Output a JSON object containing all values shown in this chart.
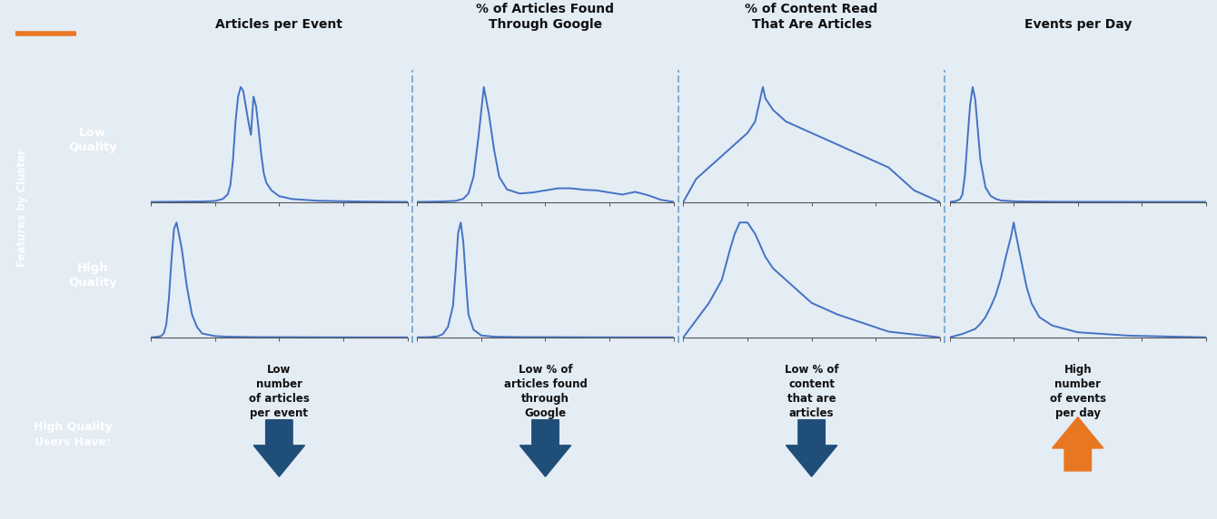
{
  "orange_line_color": "#E87722",
  "bg_color": "#E4ECF4",
  "curve_color": "#4472C4",
  "dashed_line_color": "#7EB0D5",
  "col_headers": [
    "Articles per Event",
    "% of Articles Found\nThrough Google",
    "% of Content Read\nThat Are Articles",
    "Events per Day"
  ],
  "row_headers": [
    "Low\nQuality",
    "High\nQuality"
  ],
  "bottom_label": "High Quality\nUsers Have:",
  "bottom_boxes_blue": [
    {
      "arrow": "down",
      "text": "Low\nnumber\nof articles\nper event"
    },
    {
      "arrow": "down",
      "text": "Low % of\narticles found\nthrough\nGoogle"
    },
    {
      "arrow": "down",
      "text": "Low % of\ncontent\nthat are\narticles"
    }
  ],
  "bottom_box_orange": {
    "arrow": "up",
    "text": "High\nnumber\nof events\nper day"
  },
  "blue_box_bg": "#D6E4F7",
  "blue_box_border": "#1F4E79",
  "orange_box_bg": "#FAE0B8",
  "orange_box_border": "#E87722",
  "arrow_blue": "#1F4E79",
  "arrow_orange": "#E87722",
  "label_dark_gray": "#6D6D6D",
  "label_light_gray": "#AAAAAA",
  "curves": {
    "low_quality": {
      "articles_per_event": {
        "x": [
          0,
          0.1,
          0.2,
          0.25,
          0.28,
          0.3,
          0.31,
          0.32,
          0.33,
          0.34,
          0.35,
          0.36,
          0.37,
          0.38,
          0.39,
          0.4,
          0.41,
          0.42,
          0.43,
          0.44,
          0.45,
          0.47,
          0.5,
          0.55,
          0.65,
          0.8,
          1.0
        ],
        "y": [
          0,
          0.001,
          0.002,
          0.005,
          0.015,
          0.04,
          0.09,
          0.22,
          0.42,
          0.55,
          0.6,
          0.58,
          0.5,
          0.42,
          0.35,
          0.55,
          0.5,
          0.38,
          0.25,
          0.15,
          0.1,
          0.06,
          0.03,
          0.015,
          0.006,
          0.002,
          0
        ]
      },
      "articles_found_google": {
        "x": [
          0,
          0.1,
          0.15,
          0.18,
          0.2,
          0.22,
          0.24,
          0.26,
          0.28,
          0.3,
          0.32,
          0.35,
          0.4,
          0.45,
          0.5,
          0.55,
          0.6,
          0.65,
          0.7,
          0.75,
          0.8,
          0.85,
          0.9,
          0.95,
          1.0
        ],
        "y": [
          0,
          0.002,
          0.005,
          0.015,
          0.04,
          0.12,
          0.32,
          0.55,
          0.42,
          0.25,
          0.12,
          0.06,
          0.04,
          0.045,
          0.055,
          0.065,
          0.065,
          0.058,
          0.055,
          0.045,
          0.035,
          0.048,
          0.032,
          0.01,
          0
        ]
      },
      "content_read_articles": {
        "x": [
          0,
          0.05,
          0.1,
          0.15,
          0.2,
          0.25,
          0.28,
          0.29,
          0.3,
          0.31,
          0.32,
          0.35,
          0.4,
          0.5,
          0.6,
          0.7,
          0.8,
          0.9,
          1.0
        ],
        "y": [
          0,
          0.002,
          0.003,
          0.004,
          0.005,
          0.006,
          0.007,
          0.008,
          0.009,
          0.01,
          0.009,
          0.008,
          0.007,
          0.006,
          0.005,
          0.004,
          0.003,
          0.001,
          0
        ]
      },
      "events_per_day": {
        "x": [
          0,
          0.02,
          0.04,
          0.05,
          0.06,
          0.07,
          0.08,
          0.09,
          0.1,
          0.11,
          0.12,
          0.14,
          0.16,
          0.18,
          0.2,
          0.25,
          0.3,
          0.4,
          0.6,
          0.8,
          1.0
        ],
        "y": [
          0,
          0.005,
          0.02,
          0.06,
          0.22,
          0.52,
          0.8,
          0.95,
          0.85,
          0.6,
          0.35,
          0.12,
          0.05,
          0.025,
          0.012,
          0.005,
          0.003,
          0.001,
          0.0005,
          0,
          0
        ]
      }
    },
    "high_quality": {
      "articles_per_event": {
        "x": [
          0,
          0.02,
          0.04,
          0.05,
          0.06,
          0.07,
          0.08,
          0.09,
          0.1,
          0.12,
          0.14,
          0.16,
          0.18,
          0.2,
          0.25,
          0.3,
          0.4,
          0.6,
          0.8,
          1.0
        ],
        "y": [
          0,
          0.003,
          0.01,
          0.03,
          0.1,
          0.3,
          0.6,
          0.85,
          0.9,
          0.7,
          0.4,
          0.18,
          0.08,
          0.03,
          0.01,
          0.005,
          0.002,
          0.001,
          0,
          0
        ]
      },
      "articles_found_google": {
        "x": [
          0,
          0.05,
          0.08,
          0.1,
          0.12,
          0.14,
          0.15,
          0.16,
          0.17,
          0.18,
          0.19,
          0.2,
          0.22,
          0.25,
          0.3,
          0.4,
          0.6,
          0.8,
          1.0
        ],
        "y": [
          0,
          0.002,
          0.008,
          0.025,
          0.08,
          0.25,
          0.52,
          0.82,
          0.9,
          0.75,
          0.45,
          0.18,
          0.06,
          0.015,
          0.005,
          0.002,
          0.001,
          0,
          0
        ]
      },
      "content_read_articles": {
        "x": [
          0,
          0.05,
          0.1,
          0.15,
          0.18,
          0.2,
          0.22,
          0.25,
          0.28,
          0.3,
          0.32,
          0.35,
          0.4,
          0.45,
          0.5,
          0.6,
          0.8,
          1.0
        ],
        "y": [
          0,
          0.003,
          0.006,
          0.01,
          0.015,
          0.018,
          0.02,
          0.02,
          0.018,
          0.016,
          0.014,
          0.012,
          0.01,
          0.008,
          0.006,
          0.004,
          0.001,
          0
        ]
      },
      "events_per_day": {
        "x": [
          0,
          0.05,
          0.1,
          0.12,
          0.14,
          0.16,
          0.18,
          0.2,
          0.22,
          0.24,
          0.25,
          0.26,
          0.28,
          0.3,
          0.32,
          0.35,
          0.4,
          0.5,
          0.7,
          1.0
        ],
        "y": [
          0,
          0.002,
          0.005,
          0.008,
          0.012,
          0.018,
          0.025,
          0.035,
          0.048,
          0.06,
          0.068,
          0.06,
          0.045,
          0.03,
          0.02,
          0.012,
          0.007,
          0.003,
          0.001,
          0
        ]
      }
    }
  }
}
